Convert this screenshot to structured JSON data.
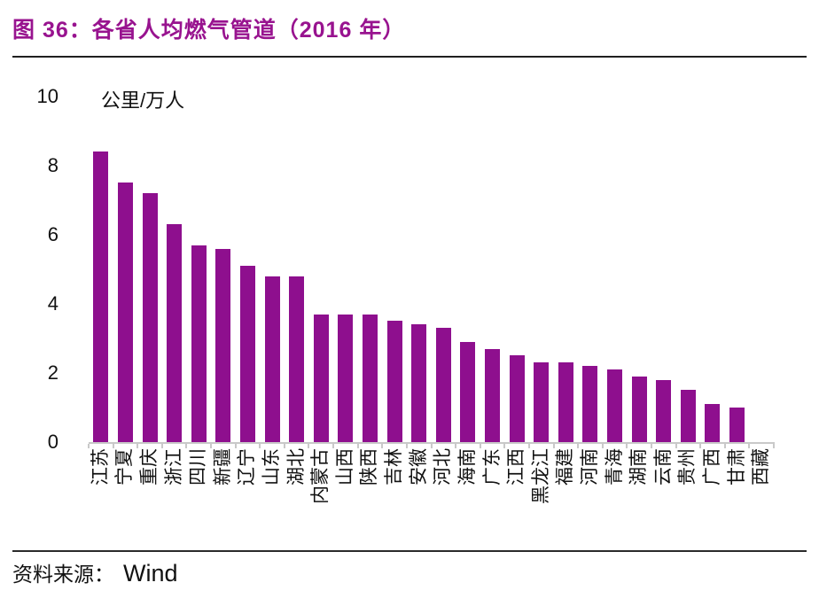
{
  "figure": {
    "title": "图 36：各省人均燃气管道（2016 年）",
    "source_label": "资料来源：",
    "source_value": "Wind"
  },
  "colors": {
    "title_accent": "#98138F",
    "bar_fill": "#8E0F8E",
    "axis_line": "#C9C9C9",
    "text_primary": "#111111"
  },
  "y_axis": {
    "unit_label": "公里/万人",
    "ticks": [
      0,
      2,
      4,
      6,
      8,
      10
    ],
    "max": 10
  },
  "chart_data": {
    "type": "bar",
    "title": "各省人均燃气管道（2016 年）",
    "xlabel": "",
    "ylabel": "公里/万人",
    "ylim": [
      0,
      10
    ],
    "grid": false,
    "legend": "none",
    "categories": [
      "江苏",
      "宁夏",
      "重庆",
      "浙江",
      "四川",
      "新疆",
      "辽宁",
      "山东",
      "湖北",
      "内蒙古",
      "山西",
      "陕西",
      "吉林",
      "安徽",
      "河北",
      "海南",
      "广东",
      "江西",
      "黑龙江",
      "福建",
      "河南",
      "青海",
      "湖南",
      "云南",
      "贵州",
      "广西",
      "甘肃",
      "西藏"
    ],
    "values": [
      8.4,
      7.5,
      7.2,
      6.3,
      5.7,
      5.6,
      5.1,
      4.8,
      4.8,
      3.7,
      3.7,
      3.7,
      3.5,
      3.4,
      3.3,
      2.9,
      2.7,
      2.5,
      2.3,
      2.3,
      2.2,
      2.1,
      1.9,
      1.8,
      1.5,
      1.1,
      1.0,
      0
    ]
  }
}
